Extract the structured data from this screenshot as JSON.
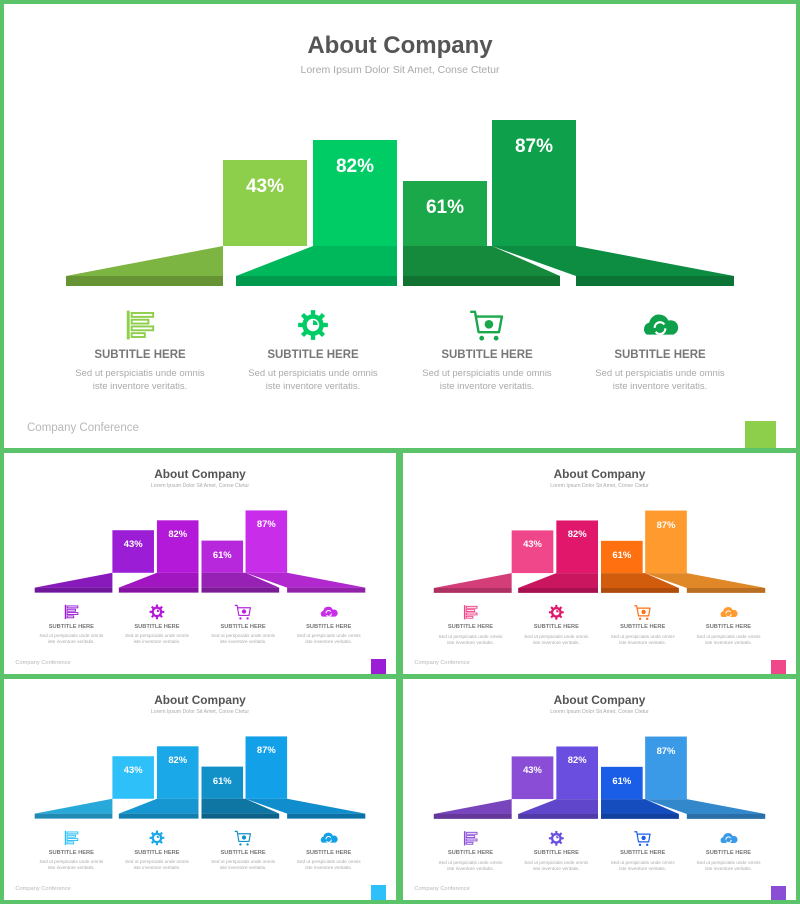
{
  "slide_title": "About Company",
  "slide_subtitle": "Lorem Ipsum Dolor Sit Amet, Conse Ctetur",
  "footer": "Company Conference",
  "bars": [
    {
      "label": "43%",
      "value": 43
    },
    {
      "label": "82%",
      "value": 82
    },
    {
      "label": "61%",
      "value": 61
    },
    {
      "label": "87%",
      "value": 87
    }
  ],
  "features": [
    {
      "icon": "list-icon",
      "title": "SUBTITLE HERE",
      "desc": "Sed ut perspiciatis unde omnis iste inventore veritatis."
    },
    {
      "icon": "gear-icon",
      "title": "SUBTITLE HERE",
      "desc": "Sed ut perspiciatis unde omnis iste inventore veritatis."
    },
    {
      "icon": "cart-icon",
      "title": "SUBTITLE HERE",
      "desc": "Sed ut perspiciatis unde omnis iste inventore veritatis."
    },
    {
      "icon": "cloud-sync-icon",
      "title": "SUBTITLE HERE",
      "desc": "Sed ut perspiciatis unde omnis iste inventore veritatis."
    }
  ],
  "themes": [
    {
      "name": "green",
      "colors": [
        "#8dce4a",
        "#00cc66",
        "#1aa84a",
        "#0ea04a"
      ],
      "accent": "#8dce4a"
    },
    {
      "name": "purple",
      "colors": [
        "#9b1ed6",
        "#b418d8",
        "#b728dc",
        "#c82eea"
      ],
      "accent": "#9b1ed6"
    },
    {
      "name": "pink",
      "colors": [
        "#f0468a",
        "#e0176a",
        "#ff7010",
        "#ff9a2e"
      ],
      "accent": "#f0468a"
    },
    {
      "name": "blue",
      "colors": [
        "#2ec0f8",
        "#1aa8e8",
        "#1290c8",
        "#12a0e8"
      ],
      "accent": "#2ec0f8"
    },
    {
      "name": "violet",
      "colors": [
        "#8a4ed6",
        "#6a4ee0",
        "#1a5ee8",
        "#3a9ae8"
      ],
      "accent": "#8a4ed6"
    }
  ]
}
